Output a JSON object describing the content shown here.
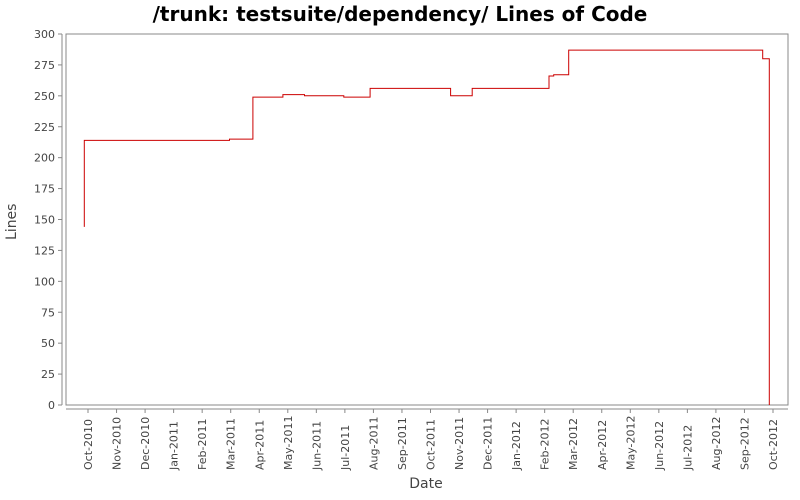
{
  "chart_data": {
    "type": "line",
    "step": true,
    "title": "/trunk: testsuite/dependency/ Lines of Code",
    "xlabel": "Date",
    "ylabel": "Lines",
    "ylim": [
      0,
      300
    ],
    "yticks": [
      0,
      25,
      50,
      75,
      100,
      125,
      150,
      175,
      200,
      225,
      250,
      275,
      300
    ],
    "xticks": [
      "Oct-2010",
      "Nov-2010",
      "Dec-2010",
      "Jan-2011",
      "Feb-2011",
      "Mar-2011",
      "Apr-2011",
      "May-2011",
      "Jun-2011",
      "Jul-2011",
      "Aug-2011",
      "Sep-2011",
      "Oct-2011",
      "Nov-2011",
      "Dec-2011",
      "Jan-2012",
      "Feb-2012",
      "Mar-2012",
      "Apr-2012",
      "May-2012",
      "Jun-2012",
      "Jul-2012",
      "Aug-2012",
      "Sep-2012",
      "Oct-2012"
    ],
    "grid": false,
    "series": [
      {
        "name": "Lines of Code",
        "color": "#cc0000",
        "points": [
          {
            "x": "2010-09-27",
            "y": 144
          },
          {
            "x": "2010-09-27",
            "y": 214
          },
          {
            "x": "2011-03-01",
            "y": 215
          },
          {
            "x": "2011-03-26",
            "y": 249
          },
          {
            "x": "2011-04-27",
            "y": 251
          },
          {
            "x": "2011-05-20",
            "y": 250
          },
          {
            "x": "2011-07-01",
            "y": 249
          },
          {
            "x": "2011-07-29",
            "y": 256
          },
          {
            "x": "2011-10-23",
            "y": 250
          },
          {
            "x": "2011-11-15",
            "y": 256
          },
          {
            "x": "2012-02-05",
            "y": 266
          },
          {
            "x": "2012-02-10",
            "y": 267
          },
          {
            "x": "2012-02-26",
            "y": 287
          },
          {
            "x": "2012-09-20",
            "y": 280
          },
          {
            "x": "2012-09-27",
            "y": 0
          }
        ]
      }
    ]
  }
}
